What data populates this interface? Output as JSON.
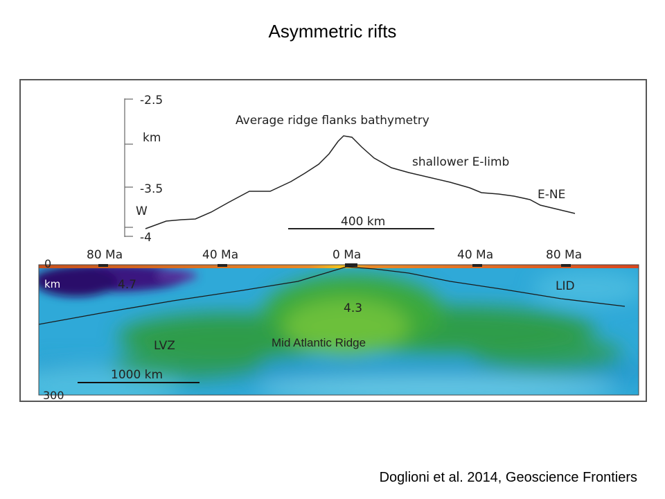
{
  "slide": {
    "title": "Asymmetric rifts",
    "citation": "Doglioni et al. 2014, Geoscience Frontiers"
  },
  "bathymetry": {
    "title": "Average ridge flanks bathymetry",
    "y_axis_ticks": [
      "-2.5",
      "-3.5",
      "-4"
    ],
    "y_axis_unit": "km",
    "west_label": "W",
    "east_label": "E-NE",
    "shallower_label": "shallower E-limb",
    "scale_bar_label": "400 km"
  },
  "tomography": {
    "age_labels": [
      "80 Ma",
      "40 Ma",
      "0 Ma",
      "40 Ma",
      "80 Ma"
    ],
    "depth_top": "0",
    "depth_unit": "km",
    "depth_bottom": "300",
    "velocity_high": "4.7",
    "velocity_low": "4.3",
    "lid_label": "LID",
    "lvz_label": "LVZ",
    "ridge_label": "Mid Atlantic Ridge",
    "scale_bar_label": "1000 km"
  },
  "colors": {
    "text": "#000000",
    "ridge_green": "#3aa83a",
    "lithosphere_blue": "#2fa9d8",
    "high_velocity_purple": "#3a1580",
    "surface_orange": "#e0641e"
  }
}
